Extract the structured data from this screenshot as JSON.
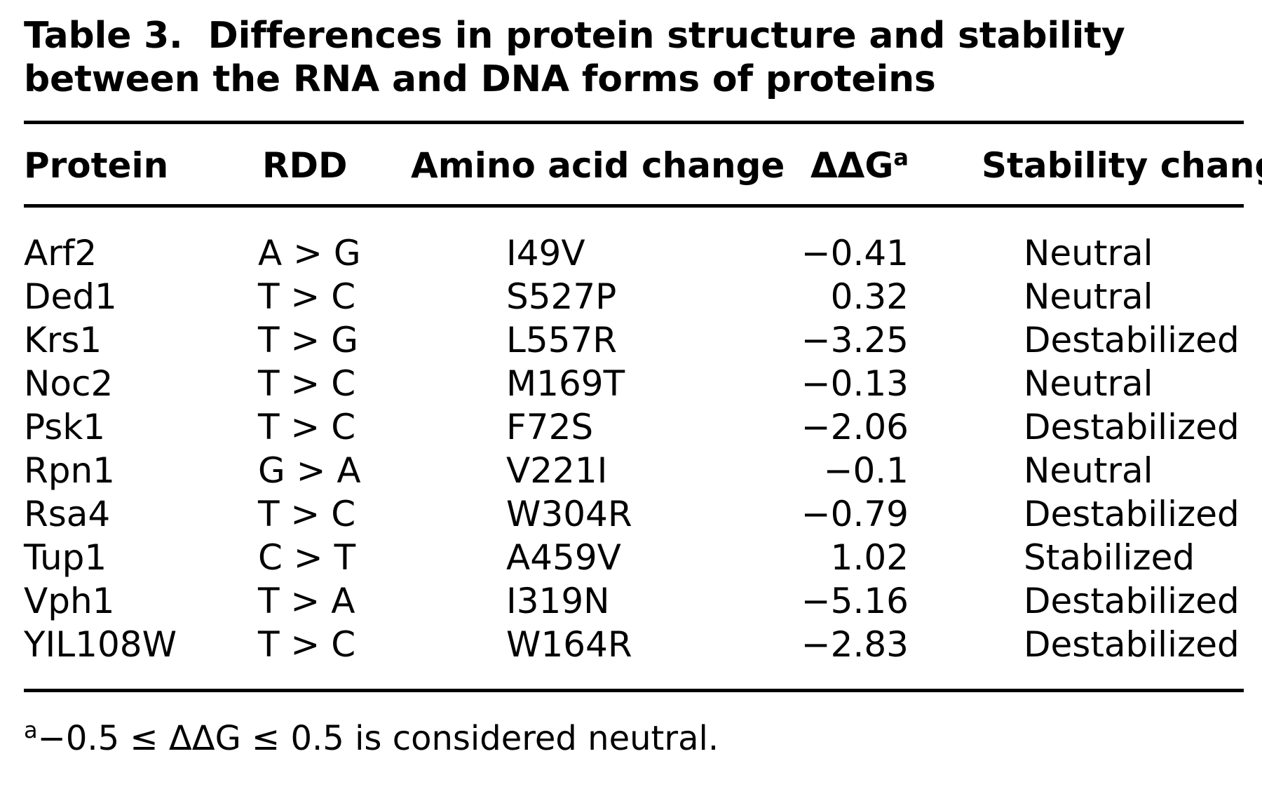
{
  "caption": {
    "label": "Table 3.",
    "text": "Differences in protein structure and stability between the RNA and DNA forms of proteins"
  },
  "columns": {
    "protein": "Protein",
    "rdd": "RDD",
    "amino_acid_change": "Amino acid change",
    "ddg": "ΔΔG",
    "ddg_note_marker": "a",
    "stability_change": "Stability change"
  },
  "rows": [
    {
      "protein": "Arf2",
      "rdd": "A > G",
      "aa": "I49V",
      "ddg": "−0.41",
      "stability": "Neutral"
    },
    {
      "protein": "Ded1",
      "rdd": "T > C",
      "aa": "S527P",
      "ddg": "0.32",
      "stability": "Neutral"
    },
    {
      "protein": "Krs1",
      "rdd": "T > G",
      "aa": "L557R",
      "ddg": "−3.25",
      "stability": "Destabilized"
    },
    {
      "protein": "Noc2",
      "rdd": "T > C",
      "aa": "M169T",
      "ddg": "−0.13",
      "stability": "Neutral"
    },
    {
      "protein": "Psk1",
      "rdd": "T > C",
      "aa": "F72S",
      "ddg": "−2.06",
      "stability": "Destabilized"
    },
    {
      "protein": "Rpn1",
      "rdd": "G > A",
      "aa": "V221I",
      "ddg": "−0.1",
      "stability": "Neutral"
    },
    {
      "protein": "Rsa4",
      "rdd": "T > C",
      "aa": "W304R",
      "ddg": "−0.79",
      "stability": "Destabilized"
    },
    {
      "protein": "Tup1",
      "rdd": "C > T",
      "aa": "A459V",
      "ddg": "1.02",
      "stability": "Stabilized"
    },
    {
      "protein": "Vph1",
      "rdd": "T > A",
      "aa": "I319N",
      "ddg": "−5.16",
      "stability": "Destabilized"
    },
    {
      "protein": "YIL108W",
      "rdd": "T > C",
      "aa": "W164R",
      "ddg": "−2.83",
      "stability": "Destabilized"
    }
  ],
  "footnote": {
    "marker": "a",
    "text": "−0.5 ≤ ΔΔG ≤ 0.5 is considered neutral."
  }
}
